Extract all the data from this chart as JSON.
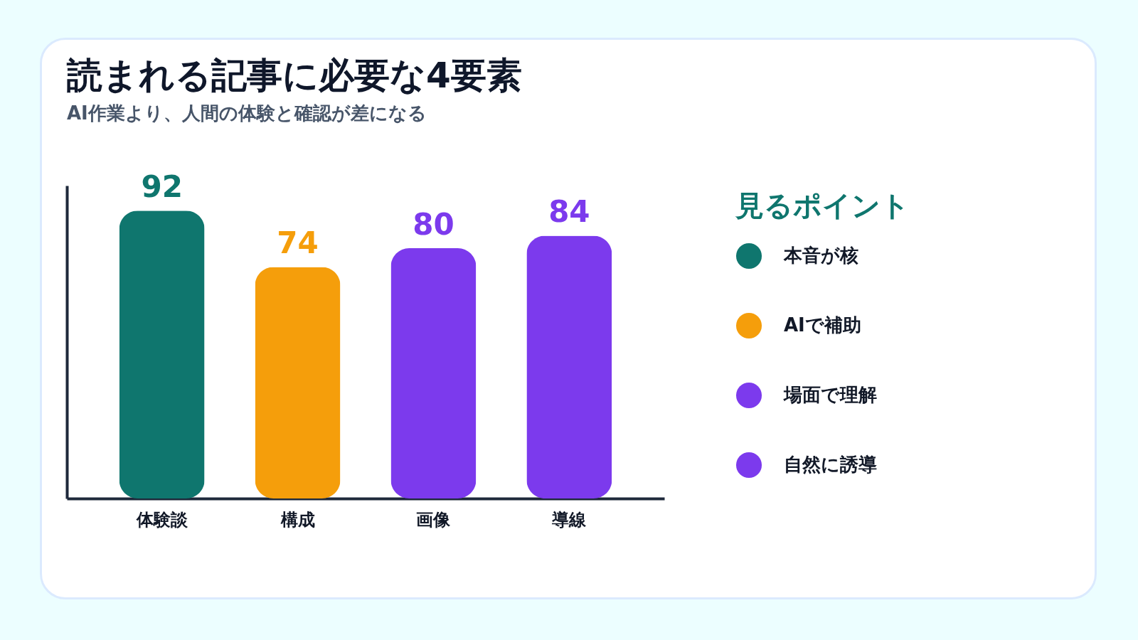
{
  "chart_data": {
    "type": "bar",
    "title": "読まれる記事に必要な4要素",
    "subtitle": "AI作業より、人間の体験と確認が差になる",
    "categories": [
      "体験談",
      "構成",
      "画像",
      "導線"
    ],
    "series": [
      {
        "name": "本音が核",
        "color": "#0f766e",
        "values": [
          92,
          null,
          null,
          null
        ]
      },
      {
        "name": "AIで補助",
        "color": "#f59e0b",
        "values": [
          null,
          74,
          null,
          null
        ]
      },
      {
        "name": "場面で理解",
        "color": "#7c3aed",
        "values": [
          null,
          null,
          80,
          null
        ]
      },
      {
        "name": "自然に誘導",
        "color": "#7c3aed",
        "values": [
          null,
          null,
          null,
          84
        ]
      }
    ],
    "ylim": [
      0,
      100
    ],
    "data_labels": true,
    "legend": "right",
    "legend_title": "見るポイント",
    "tick_labels": "x",
    "grid": false
  }
}
